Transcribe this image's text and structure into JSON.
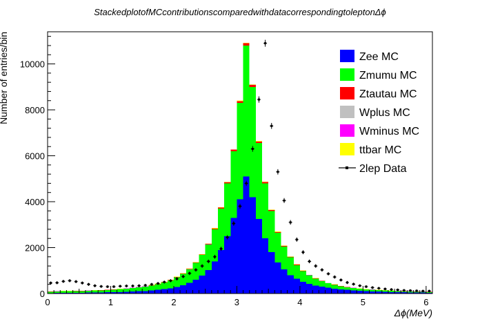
{
  "chart_data": {
    "type": "bar",
    "stacked": true,
    "title": "StackedplotofMCcontributionscomparedwithdatacorrespondingtoleptonΔϕ",
    "xlabel": "Δϕ(MeV)",
    "ylabel": "Number of entries/bin",
    "xlim": [
      0,
      6.1
    ],
    "ylim": [
      0,
      11400
    ],
    "bin_width": 0.1,
    "x_ticks": [
      "0",
      "1",
      "2",
      "3",
      "4",
      "5",
      "6"
    ],
    "y_ticks": [
      "0",
      "2000",
      "4000",
      "6000",
      "8000",
      "10000"
    ],
    "legend_position": "top-right",
    "x": [
      0.05,
      0.15,
      0.25,
      0.35,
      0.45,
      0.55,
      0.65,
      0.75,
      0.85,
      0.95,
      1.05,
      1.15,
      1.25,
      1.35,
      1.45,
      1.55,
      1.65,
      1.75,
      1.85,
      1.95,
      2.05,
      2.15,
      2.25,
      2.35,
      2.45,
      2.55,
      2.65,
      2.75,
      2.85,
      2.95,
      3.05,
      3.15,
      3.25,
      3.35,
      3.45,
      3.55,
      3.65,
      3.75,
      3.85,
      3.95,
      4.05,
      4.15,
      4.25,
      4.35,
      4.45,
      4.55,
      4.65,
      4.75,
      4.85,
      4.95,
      5.05,
      5.15,
      5.25,
      5.35,
      5.45,
      5.55,
      5.65,
      5.75,
      5.85,
      5.95,
      6.05
    ],
    "series": [
      {
        "name": "Zee MC",
        "color": "#0000ff",
        "values": [
          20,
          25,
          30,
          30,
          35,
          35,
          40,
          45,
          50,
          55,
          60,
          65,
          75,
          85,
          100,
          110,
          130,
          160,
          190,
          230,
          290,
          360,
          460,
          600,
          780,
          1030,
          1400,
          1900,
          2500,
          3300,
          4100,
          5100,
          4200,
          3250,
          2400,
          1800,
          1350,
          1050,
          800,
          640,
          510,
          420,
          350,
          300,
          250,
          210,
          180,
          160,
          140,
          120,
          100,
          95,
          85,
          75,
          65,
          60,
          55,
          50,
          45,
          40,
          35
        ]
      },
      {
        "name": "Zmumu MC",
        "color": "#00ff00",
        "values": [
          60,
          65,
          70,
          70,
          75,
          75,
          80,
          85,
          90,
          100,
          110,
          125,
          135,
          155,
          170,
          190,
          220,
          250,
          290,
          340,
          420,
          500,
          600,
          740,
          900,
          1100,
          1400,
          1800,
          2300,
          2900,
          4200,
          5700,
          4800,
          3300,
          2400,
          1800,
          1300,
          1000,
          780,
          600,
          470,
          370,
          300,
          240,
          200,
          170,
          140,
          115,
          100,
          85,
          75,
          70,
          60,
          55,
          50,
          45,
          40,
          40,
          35,
          35,
          30
        ]
      },
      {
        "name": "Ztautau MC",
        "color": "#ff0000",
        "values": [
          5,
          5,
          5,
          5,
          5,
          5,
          5,
          5,
          5,
          5,
          5,
          5,
          5,
          6,
          6,
          6,
          7,
          8,
          9,
          10,
          11,
          12,
          14,
          16,
          20,
          25,
          30,
          40,
          50,
          60,
          80,
          100,
          90,
          70,
          55,
          40,
          30,
          25,
          20,
          16,
          14,
          12,
          10,
          9,
          8,
          7,
          6,
          6,
          5,
          5,
          5,
          5,
          5,
          5,
          5,
          5,
          5,
          5,
          5,
          5,
          5
        ]
      },
      {
        "name": "Wplus MC",
        "color": "#c0c0c0",
        "values": [
          2,
          2,
          2,
          2,
          2,
          2,
          2,
          2,
          2,
          2,
          2,
          2,
          2,
          2,
          2,
          2,
          2,
          2,
          2,
          2,
          2,
          2,
          2,
          2,
          2,
          2,
          2,
          2,
          2,
          2,
          2,
          2,
          2,
          2,
          2,
          2,
          2,
          2,
          2,
          2,
          2,
          2,
          2,
          2,
          2,
          2,
          2,
          2,
          2,
          2,
          2,
          2,
          2,
          2,
          2,
          2,
          2,
          2,
          2,
          2,
          2
        ]
      },
      {
        "name": "Wminus MC",
        "color": "#ff00ff",
        "values": [
          2,
          2,
          2,
          2,
          2,
          2,
          2,
          2,
          2,
          2,
          2,
          2,
          2,
          2,
          2,
          2,
          2,
          2,
          2,
          2,
          2,
          2,
          2,
          2,
          2,
          2,
          2,
          2,
          2,
          2,
          2,
          2,
          2,
          2,
          2,
          2,
          2,
          2,
          2,
          2,
          2,
          2,
          2,
          2,
          2,
          2,
          2,
          2,
          2,
          2,
          2,
          2,
          2,
          2,
          2,
          2,
          2,
          2,
          2,
          2,
          2
        ]
      },
      {
        "name": "ttbar MC",
        "color": "#ffff00",
        "values": [
          5,
          5,
          6,
          6,
          6,
          6,
          7,
          7,
          7,
          8,
          8,
          9,
          9,
          10,
          10,
          11,
          12,
          12,
          13,
          14,
          15,
          15,
          16,
          16,
          17,
          17,
          18,
          18,
          18,
          18,
          18,
          18,
          18,
          18,
          17,
          17,
          16,
          15,
          14,
          13,
          12,
          11,
          10,
          9,
          8,
          8,
          7,
          6,
          6,
          5,
          5,
          5,
          4,
          4,
          4,
          3,
          3,
          3,
          3,
          3,
          3
        ]
      }
    ],
    "data_series": {
      "name": "2lep Data",
      "values": [
        460,
        470,
        530,
        560,
        520,
        460,
        400,
        340,
        310,
        300,
        300,
        320,
        330,
        330,
        340,
        360,
        400,
        440,
        500,
        560,
        640,
        740,
        880,
        1030,
        1200,
        1400,
        1600,
        1950,
        2450,
        3050,
        3800,
        4800,
        6300,
        8450,
        10900,
        7300,
        5300,
        4050,
        3100,
        2350,
        1800,
        1400,
        1200,
        1030,
        860,
        720,
        590,
        480,
        410,
        340,
        300,
        260,
        230,
        200,
        175,
        160,
        140,
        130,
        120,
        110,
        110
      ]
    }
  }
}
